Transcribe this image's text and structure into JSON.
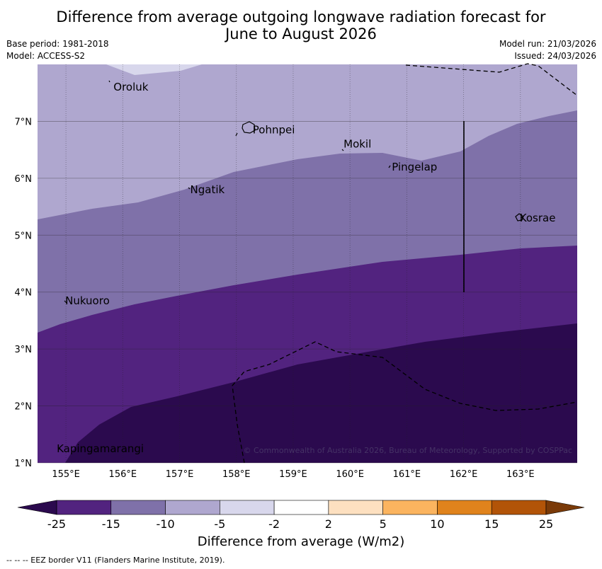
{
  "title_line1": "Difference from average outgoing longwave radiation forecast for",
  "title_line2": "June to August 2026",
  "meta_left": {
    "base_period": "Base period: 1981-2018",
    "model": "Model: ACCESS-S2"
  },
  "meta_right": {
    "model_run": "Model run: 21/03/2026",
    "issued": "Issued: 24/03/2026"
  },
  "map": {
    "lon_range": [
      154.5,
      164.0
    ],
    "lat_range": [
      1.0,
      8.0
    ],
    "lon_ticks": [
      "155°E",
      "156°E",
      "157°E",
      "158°E",
      "159°E",
      "160°E",
      "161°E",
      "162°E",
      "163°E"
    ],
    "lat_ticks": [
      "7°N",
      "6°N",
      "5°N",
      "4°N",
      "3°N",
      "2°N",
      "1°N"
    ],
    "places": [
      {
        "name": "Oroluk",
        "lon": 155.8,
        "lat": 7.6
      },
      {
        "name": "Pohnpei",
        "lon": 158.25,
        "lat": 6.85
      },
      {
        "name": "Mokil",
        "lon": 159.85,
        "lat": 6.6
      },
      {
        "name": "Pingelap",
        "lon": 160.7,
        "lat": 6.2
      },
      {
        "name": "Ngatik",
        "lon": 157.15,
        "lat": 5.8
      },
      {
        "name": "Kosrae",
        "lon": 162.95,
        "lat": 5.3
      },
      {
        "name": "Nukuoro",
        "lon": 154.95,
        "lat": 3.85
      },
      {
        "name": "Kapingamarangi",
        "lon": 154.8,
        "lat": 1.25
      }
    ],
    "copyright": "© Commonwealth of Australia 2026, Bureau of Meteorology, Supported by COSPPac"
  },
  "colorbar": {
    "labels": [
      "-25",
      "-15",
      "-10",
      "-5",
      "-2",
      "2",
      "5",
      "10",
      "15",
      "25"
    ],
    "colors": [
      "#2b0a4e",
      "#52237f",
      "#7f71a9",
      "#afa7cf",
      "#d8d7ec",
      "#ffffff",
      "#fde0c0",
      "#fbb45f",
      "#e0831c",
      "#b25408",
      "#7a3a08"
    ],
    "title": "Difference from average (W/m2)"
  },
  "footer": "--  --  -- EEZ border V11 (Flanders Marine Institute, 2019)."
}
